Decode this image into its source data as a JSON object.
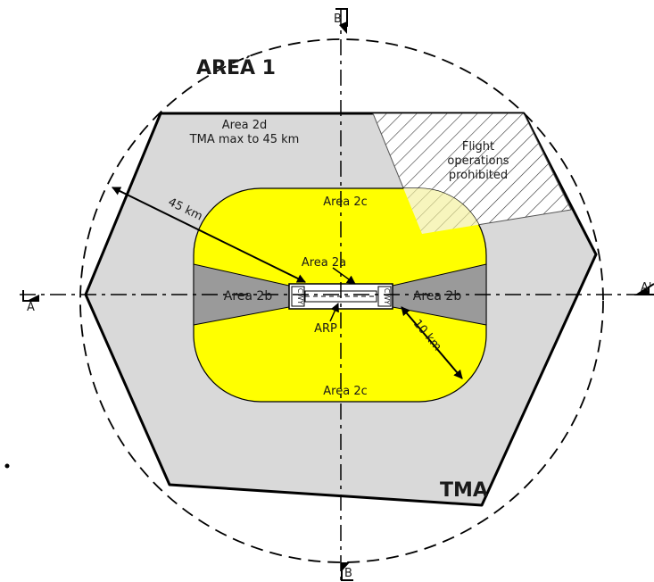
{
  "colors": {
    "tma_fill": "#d9d9d9",
    "area2c_fill": "#ffff00",
    "area2b_fill": "#9a9a9a",
    "overlap_fill": "#f3f09a",
    "outline": "#000000"
  },
  "labels": {
    "area1": "AREÁ 1",
    "area2d_line1": "Area 2d",
    "area2d_line2": "TMA max to 45 km",
    "prohibited_line1": "Flight",
    "prohibited_line2": "operations",
    "prohibited_line3": "prohibited",
    "area2c_top": "Area 2c",
    "area2c_bottom": "Area 2c",
    "area2a": "Area 2a",
    "area2b_left": "Area 2b",
    "area2b_right": "Area 2b",
    "arp": "ARP",
    "dist45": "45 km",
    "dist10": "10 km",
    "tma": "TMA",
    "cwy_left": "CWY",
    "cwy_right": "CWY",
    "section_a": "A",
    "section_a_prime": "A'",
    "section_b_top": "B",
    "section_b_bottom": "B"
  },
  "icons": {
    "arrow": "arrow-icon"
  }
}
